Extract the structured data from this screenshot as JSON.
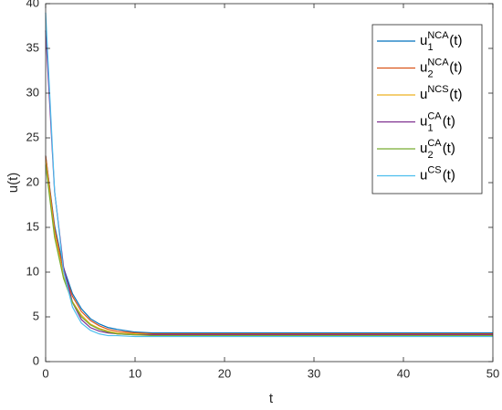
{
  "chart_data": {
    "type": "line",
    "xlabel": "t",
    "ylabel": "u(t)",
    "x": [
      0,
      1,
      2,
      3,
      4,
      5,
      6,
      7,
      8,
      10,
      12,
      15,
      20,
      30,
      40,
      50
    ],
    "xlim": [
      0,
      50
    ],
    "xticks": [
      0,
      10,
      20,
      30,
      40,
      50
    ],
    "ylim": [
      0,
      40
    ],
    "yticks": [
      0,
      5,
      10,
      15,
      20,
      25,
      30,
      35,
      40
    ],
    "legend": "northeast",
    "series": [
      {
        "name": "u",
        "sub": "1",
        "sup": "NCA",
        "suffix": "(t)",
        "color": "#0072BD",
        "values": [
          23,
          15.2,
          10.5,
          7.6,
          5.9,
          4.8,
          4.2,
          3.8,
          3.6,
          3.3,
          3.2,
          3.2,
          3.2,
          3.2,
          3.2,
          3.2
        ]
      },
      {
        "name": "u",
        "sub": "2",
        "sup": "NCA",
        "suffix": "(t)",
        "color": "#D95319",
        "values": [
          23,
          14.9,
          10.1,
          7.3,
          5.6,
          4.6,
          4.0,
          3.6,
          3.4,
          3.2,
          3.1,
          3.1,
          3.1,
          3.1,
          3.1,
          3.1
        ]
      },
      {
        "name": "u",
        "sup": "NCS",
        "suffix": "(t)",
        "color": "#EDB120",
        "values": [
          22.5,
          14.3,
          9.5,
          6.7,
          5.2,
          4.2,
          3.7,
          3.4,
          3.2,
          3.1,
          3.0,
          3.0,
          3.0,
          3.0,
          3.0,
          3.0
        ]
      },
      {
        "name": "u",
        "sub": "1",
        "sup": "CA",
        "suffix": "(t)",
        "color": "#7E2F8E",
        "values": [
          37,
          19.0,
          10.6,
          6.6,
          4.7,
          3.8,
          3.4,
          3.2,
          3.1,
          3.0,
          3.0,
          3.0,
          3.0,
          3.0,
          3.0,
          3.0
        ]
      },
      {
        "name": "u",
        "sub": "2",
        "sup": "CA",
        "suffix": "(t)",
        "color": "#77AC30",
        "values": [
          22,
          13.9,
          9.3,
          6.6,
          5.0,
          4.1,
          3.6,
          3.3,
          3.1,
          3.0,
          2.9,
          2.9,
          2.9,
          2.9,
          2.9,
          2.9
        ]
      },
      {
        "name": "u",
        "sup": "CS",
        "suffix": "(t)",
        "color": "#4DBEEE",
        "values": [
          39,
          19.1,
          10.1,
          6.1,
          4.3,
          3.5,
          3.1,
          2.9,
          2.9,
          2.8,
          2.8,
          2.8,
          2.8,
          2.8,
          2.8,
          2.8
        ]
      }
    ]
  }
}
